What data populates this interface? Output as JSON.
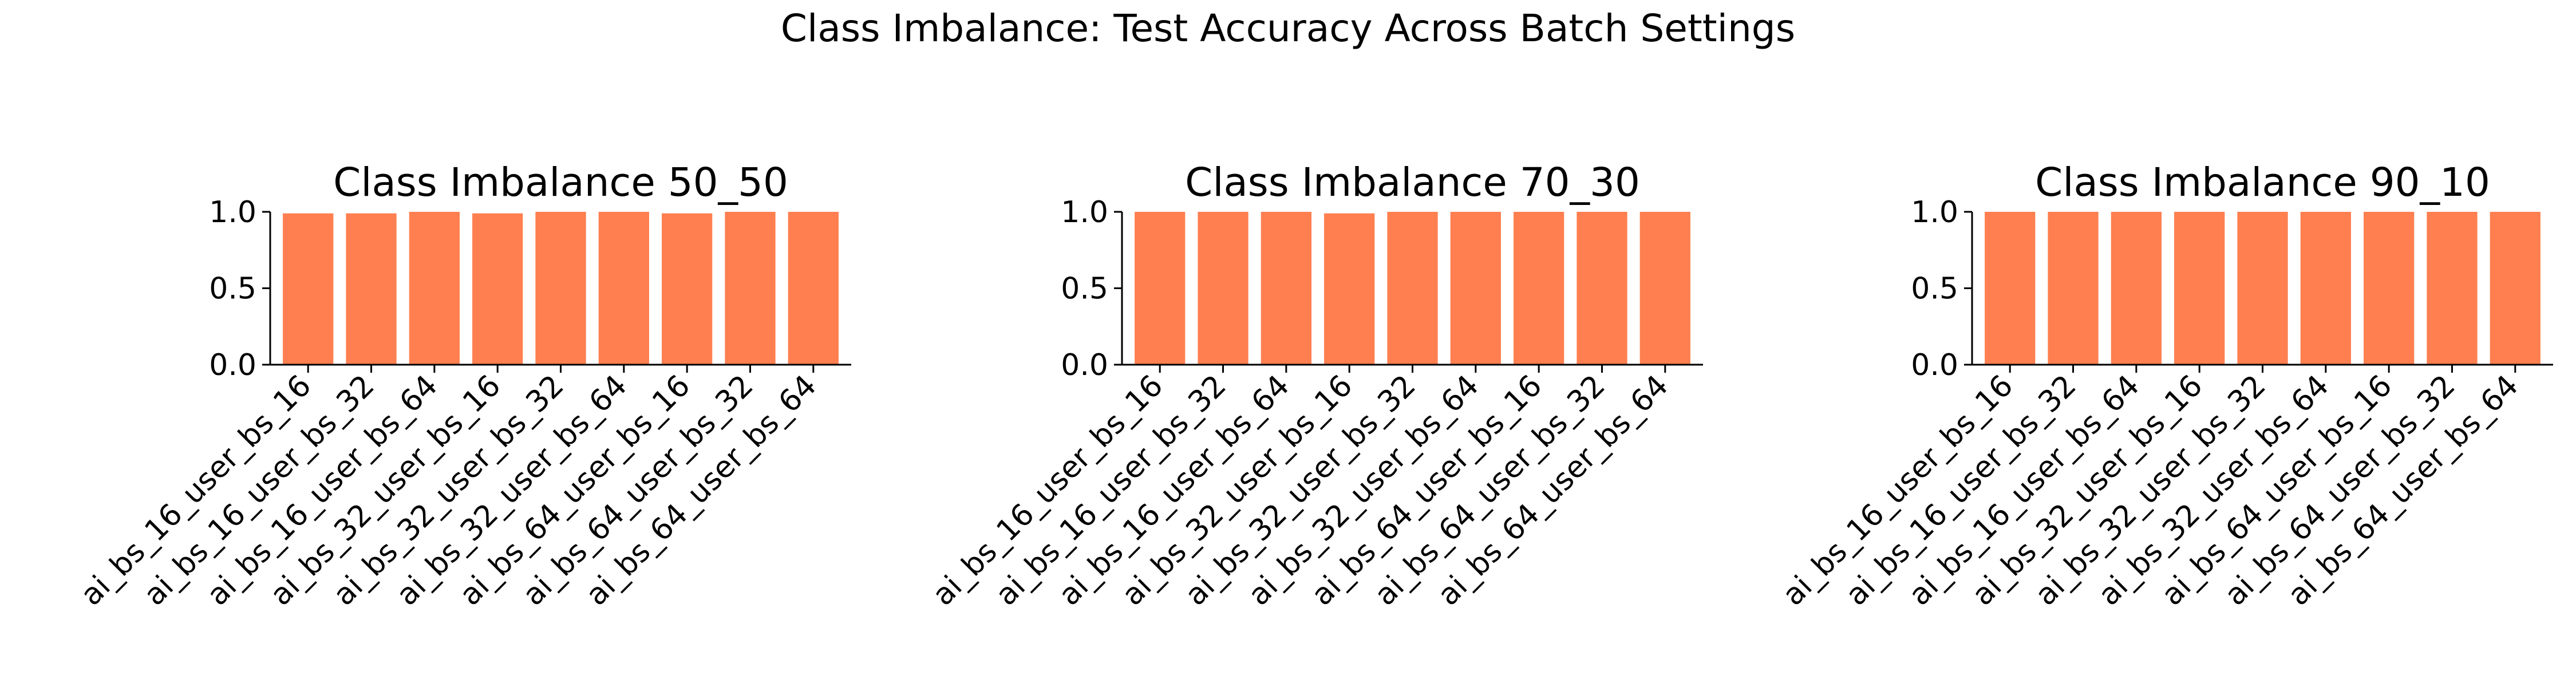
{
  "suptitle": "Class Imbalance: Test Accuracy Across Batch Settings",
  "colors": {
    "bar": "#ff7f50",
    "axis": "#000000",
    "background": "#ffffff"
  },
  "chart_data": [
    {
      "type": "bar",
      "title": "Class Imbalance 50_50",
      "xlabel": "",
      "ylabel": "",
      "ylim": [
        0,
        1.0
      ],
      "yticks": [
        "0.0",
        "0.5",
        "1.0"
      ],
      "grid": false,
      "categories": [
        "ai_bs_16_user_bs_16",
        "ai_bs_16_user_bs_32",
        "ai_bs_16_user_bs_64",
        "ai_bs_32_user_bs_16",
        "ai_bs_32_user_bs_32",
        "ai_bs_32_user_bs_64",
        "ai_bs_64_user_bs_16",
        "ai_bs_64_user_bs_32",
        "ai_bs_64_user_bs_64"
      ],
      "values": [
        0.99,
        0.99,
        1.0,
        0.99,
        1.0,
        1.0,
        0.99,
        1.0,
        1.0
      ]
    },
    {
      "type": "bar",
      "title": "Class Imbalance 70_30",
      "xlabel": "",
      "ylabel": "",
      "ylim": [
        0,
        1.0
      ],
      "yticks": [
        "0.0",
        "0.5",
        "1.0"
      ],
      "grid": false,
      "categories": [
        "ai_bs_16_user_bs_16",
        "ai_bs_16_user_bs_32",
        "ai_bs_16_user_bs_64",
        "ai_bs_32_user_bs_16",
        "ai_bs_32_user_bs_32",
        "ai_bs_32_user_bs_64",
        "ai_bs_64_user_bs_16",
        "ai_bs_64_user_bs_32",
        "ai_bs_64_user_bs_64"
      ],
      "values": [
        1.0,
        1.0,
        1.0,
        0.99,
        1.0,
        1.0,
        1.0,
        1.0,
        1.0
      ]
    },
    {
      "type": "bar",
      "title": "Class Imbalance 90_10",
      "xlabel": "",
      "ylabel": "",
      "ylim": [
        0,
        1.0
      ],
      "yticks": [
        "0.0",
        "0.5",
        "1.0"
      ],
      "grid": false,
      "categories": [
        "ai_bs_16_user_bs_16",
        "ai_bs_16_user_bs_32",
        "ai_bs_16_user_bs_64",
        "ai_bs_32_user_bs_16",
        "ai_bs_32_user_bs_32",
        "ai_bs_32_user_bs_64",
        "ai_bs_64_user_bs_16",
        "ai_bs_64_user_bs_32",
        "ai_bs_64_user_bs_64"
      ],
      "values": [
        1.0,
        1.0,
        1.0,
        1.0,
        1.0,
        1.0,
        1.0,
        1.0,
        1.0
      ]
    }
  ]
}
